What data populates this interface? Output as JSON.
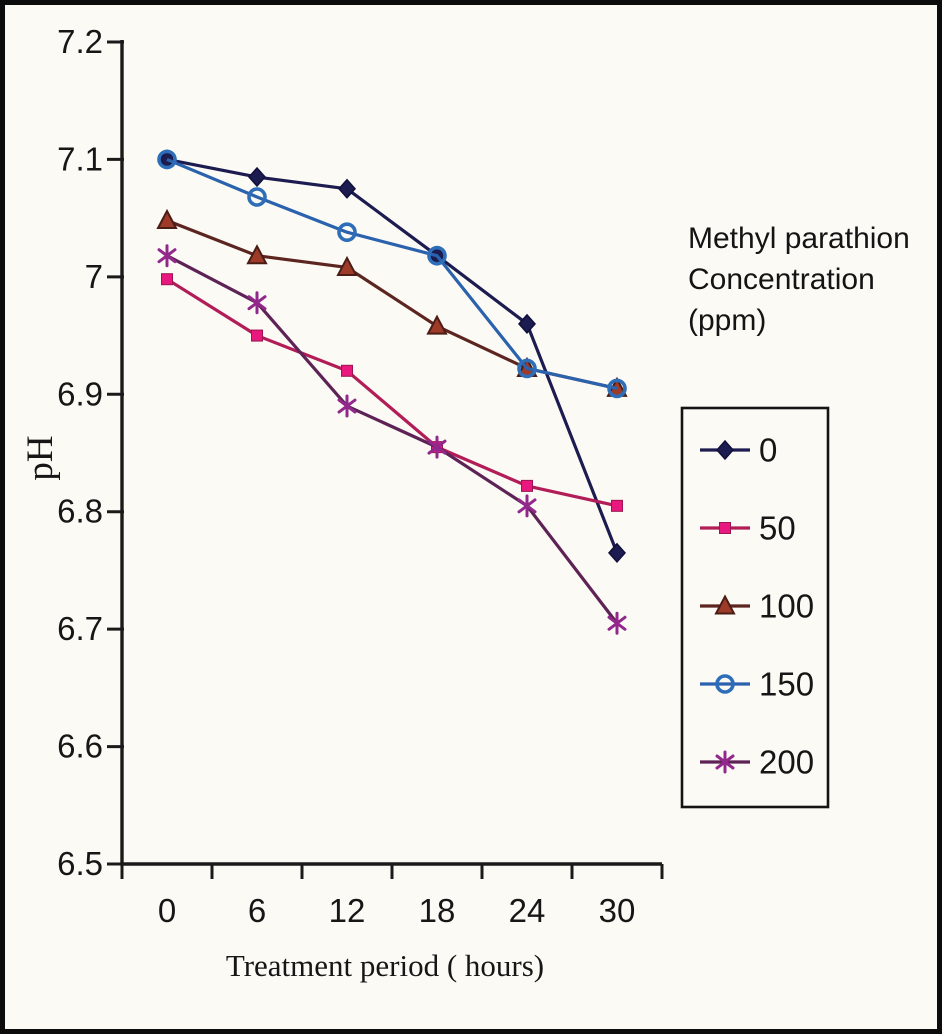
{
  "figure": {
    "y_axis_title": "pH",
    "x_axis_title": "Treatment period ( hours)",
    "legend_title_lines": [
      "Methyl parathion",
      "Concentration",
      "(ppm)"
    ]
  },
  "chart_data": {
    "type": "line",
    "title": "",
    "xlabel": "Treatment period ( hours)",
    "ylabel": "pH",
    "legend_title": "Methyl parathion Concentration (ppm)",
    "legend_position": "right",
    "grid": false,
    "x": [
      0,
      6,
      12,
      18,
      24,
      30
    ],
    "x_tick_labels": [
      "0",
      "6",
      "12",
      "18",
      "24",
      "30"
    ],
    "ylim": [
      6.5,
      7.2
    ],
    "y_ticks": [
      6.5,
      6.6,
      6.7,
      6.8,
      6.9,
      7.0,
      7.1,
      7.2
    ],
    "y_tick_labels": [
      "6.5",
      "6.6",
      "6.7",
      "6.8",
      "6.9",
      "7",
      "7.1",
      "7.2"
    ],
    "series": [
      {
        "name": "0",
        "marker": "diamond",
        "line_color": "#1c1c50",
        "marker_color": "#1c1c50",
        "marker_stroke": "#10103a",
        "values": [
          7.1,
          7.085,
          7.075,
          7.018,
          6.96,
          6.765
        ]
      },
      {
        "name": "50",
        "marker": "square",
        "line_color": "#b21d58",
        "marker_color": "#e8187e",
        "marker_stroke": "#9b1650",
        "values": [
          6.998,
          6.95,
          6.92,
          6.855,
          6.822,
          6.805
        ]
      },
      {
        "name": "100",
        "marker": "triangle",
        "line_color": "#5c2520",
        "marker_color": "#9e3a28",
        "marker_stroke": "#4a1d16",
        "values": [
          7.048,
          7.018,
          7.008,
          6.958,
          6.922,
          6.905
        ]
      },
      {
        "name": "150",
        "marker": "circle-open",
        "line_color": "#2a62ae",
        "marker_color": "#2e6db8",
        "marker_stroke": "#2e6db8",
        "values": [
          7.1,
          7.068,
          7.038,
          7.018,
          6.922,
          6.905
        ]
      },
      {
        "name": "200",
        "marker": "asterisk",
        "line_color": "#5e2356",
        "marker_color": "#93288c",
        "marker_stroke": "#93288c",
        "values": [
          7.018,
          6.978,
          6.89,
          6.855,
          6.805,
          6.705
        ]
      }
    ]
  },
  "layout_colors": {
    "paper": "#fbfaf5",
    "axis": "#1a1a1a",
    "frame": "#0c0c0c"
  }
}
